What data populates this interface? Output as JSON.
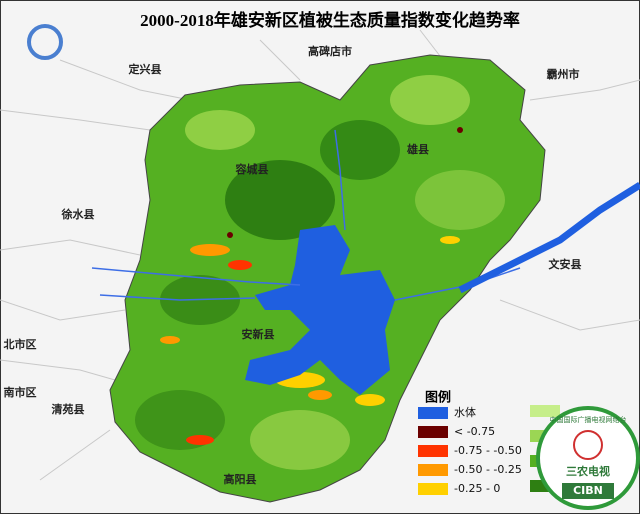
{
  "header": {
    "title": "2000-2018年雄安新区植被生态质量指数变化趋势率"
  },
  "places": [
    "定兴县",
    "高碑店市",
    "霸州市",
    "容城县",
    "雄县",
    "徐水县",
    "文安县",
    "安新县",
    "北市区",
    "南市区",
    "清苑县",
    "高阳县"
  ],
  "legend": {
    "title": "图例",
    "items": [
      {
        "label": "水体",
        "color": "#1f5fe0"
      },
      {
        "label": "< -0.75",
        "color": "#6b0000"
      },
      {
        "label": "-0.75 - -0.50",
        "color": "#ff3300"
      },
      {
        "label": "-0.50 - -0.25",
        "color": "#ff9900"
      },
      {
        "label": "-0.25 - 0",
        "color": "#ffd000"
      }
    ]
  },
  "watermark": {
    "org": "中国国际广播电视网络台",
    "channel": "三农电视",
    "brand": "CIBN"
  }
}
